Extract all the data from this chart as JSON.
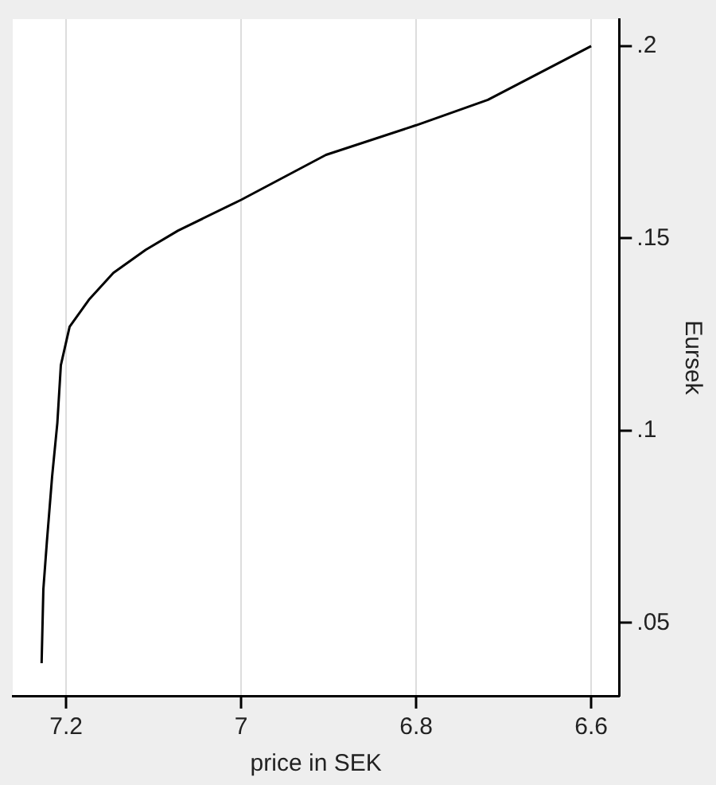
{
  "chart_data": {
    "type": "line",
    "xlabel": "price in SEK",
    "ylabel": "Eursek",
    "x": [
      7.228,
      7.226,
      7.222,
      7.216,
      7.21,
      7.206,
      7.196,
      7.174,
      7.146,
      7.109,
      7.072,
      7.0,
      6.903,
      6.8,
      6.718,
      6.6
    ],
    "series": [
      {
        "color": "#000000",
        "values": [
          0.0395,
          0.0587,
          0.071,
          0.088,
          0.102,
          0.117,
          0.127,
          0.134,
          0.141,
          0.147,
          0.152,
          0.16,
          0.1717,
          0.1794,
          0.186,
          0.2
        ]
      }
    ],
    "xlim": [
      7.261,
      6.568
    ],
    "ylim": [
      0.031,
      0.207
    ],
    "xticks": [
      7.2,
      7,
      6.8,
      6.6
    ],
    "yticks": [
      {
        "value": 0.05,
        "label": ".05"
      },
      {
        "value": 0.1,
        "label": ".1"
      },
      {
        "value": 0.15,
        "label": ".15"
      },
      {
        "value": 0.2,
        "label": ".2"
      }
    ],
    "grid": "x"
  }
}
